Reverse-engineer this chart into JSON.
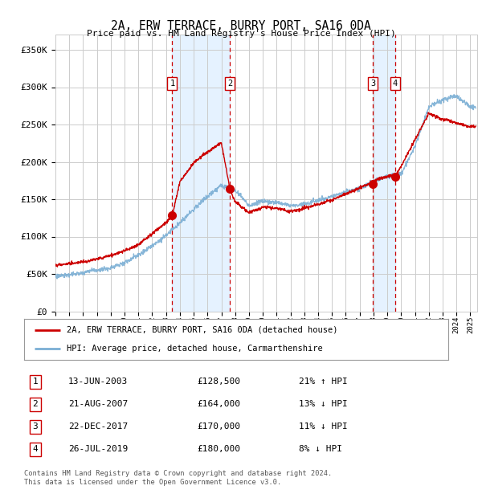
{
  "title": "2A, ERW TERRACE, BURRY PORT, SA16 0DA",
  "subtitle": "Price paid vs. HM Land Registry's House Price Index (HPI)",
  "ylabel_ticks": [
    "£0",
    "£50K",
    "£100K",
    "£150K",
    "£200K",
    "£250K",
    "£300K",
    "£350K"
  ],
  "ytick_values": [
    0,
    50000,
    100000,
    150000,
    200000,
    250000,
    300000,
    350000
  ],
  "ylim": [
    0,
    370000
  ],
  "xlim_start": 1995.0,
  "xlim_end": 2025.5,
  "transactions": [
    {
      "num": 1,
      "date": "13-JUN-2003",
      "price": 128500,
      "year": 2003.45,
      "pct": "21% ↑ HPI"
    },
    {
      "num": 2,
      "date": "21-AUG-2007",
      "price": 164000,
      "year": 2007.63,
      "pct": "13% ↓ HPI"
    },
    {
      "num": 3,
      "date": "22-DEC-2017",
      "price": 170000,
      "year": 2017.97,
      "pct": "11% ↓ HPI"
    },
    {
      "num": 4,
      "date": "26-JUL-2019",
      "price": 180000,
      "year": 2019.57,
      "pct": "8% ↓ HPI"
    }
  ],
  "legend_line1": "2A, ERW TERRACE, BURRY PORT, SA16 0DA (detached house)",
  "legend_line2": "HPI: Average price, detached house, Carmarthenshire",
  "footer1": "Contains HM Land Registry data © Crown copyright and database right 2024.",
  "footer2": "This data is licensed under the Open Government Licence v3.0.",
  "red_color": "#cc0000",
  "blue_color": "#7aaed4",
  "shade_color": "#ddeeff",
  "grid_color": "#cccccc",
  "background_color": "#ffffff",
  "hpi_anchors_years": [
    1995,
    1996,
    1997,
    1998,
    1999,
    2000,
    2001,
    2002,
    2003,
    2004,
    2005,
    2006,
    2007,
    2008,
    2009,
    2010,
    2011,
    2012,
    2013,
    2014,
    2015,
    2016,
    2017,
    2018,
    2019,
    2020,
    2021,
    2022,
    2023,
    2024,
    2025
  ],
  "hpi_anchors_vals": [
    50000,
    52000,
    54000,
    57000,
    61000,
    68000,
    78000,
    90000,
    103000,
    120000,
    138000,
    155000,
    170000,
    162000,
    142000,
    148000,
    145000,
    140000,
    143000,
    148000,
    152000,
    158000,
    163000,
    172000,
    178000,
    182000,
    218000,
    270000,
    280000,
    285000,
    270000
  ],
  "pp_anchors_years": [
    1995,
    1996,
    1997,
    1998,
    1999,
    2000,
    2001,
    2002,
    2003,
    2003.45,
    2004,
    2005,
    2006,
    2007,
    2007.63,
    2008,
    2009,
    2010,
    2011,
    2012,
    2013,
    2014,
    2015,
    2016,
    2017,
    2017.97,
    2018,
    2019,
    2019.57,
    2020,
    2021,
    2022,
    2023,
    2024,
    2025
  ],
  "pp_anchors_vals": [
    65000,
    66000,
    68000,
    72000,
    76000,
    82000,
    90000,
    105000,
    120000,
    128500,
    175000,
    200000,
    215000,
    228000,
    164000,
    148000,
    133000,
    140000,
    138000,
    133000,
    138000,
    143000,
    148000,
    155000,
    163000,
    170000,
    172000,
    178000,
    180000,
    192000,
    228000,
    262000,
    255000,
    250000,
    245000
  ],
  "noise_seed": 99,
  "hpi_noise_std": 3000,
  "pp_noise_std": 2000
}
